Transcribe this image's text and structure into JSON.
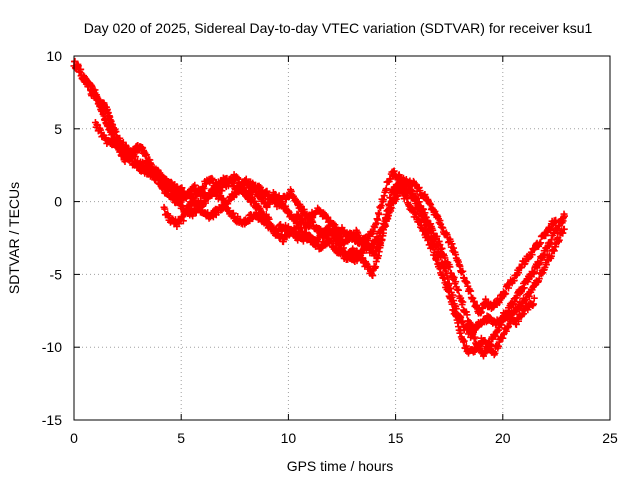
{
  "chart_data": {
    "type": "scatter",
    "title": "Day 020 of 2025, Sidereal Day-to-day VTEC variation (SDTVAR) for receiver ksu1",
    "xlabel": "GPS time / hours",
    "ylabel": "SDTVAR / TECUs",
    "xlim": [
      0,
      25
    ],
    "ylim": [
      -15,
      10
    ],
    "xticks": [
      0,
      5,
      10,
      15,
      20,
      25
    ],
    "yticks": [
      10,
      5,
      0,
      -5,
      -10,
      -15
    ],
    "xtick_labels": [
      "0",
      "5",
      "10",
      "15",
      "20",
      "25"
    ],
    "ytick_labels": [
      "10",
      "5",
      "0",
      "-5",
      "-10",
      "-15"
    ],
    "grid": true,
    "marker": "+",
    "series": [
      {
        "name": "SDTVAR",
        "color": "#ff0000",
        "tracks": [
          {
            "x": [
              0.0,
              0.2,
              0.4,
              0.6,
              0.8,
              1.0,
              1.2,
              1.4,
              1.6,
              1.8,
              2.0,
              2.2,
              2.4,
              2.6,
              2.8,
              3.0,
              3.2,
              3.4,
              3.6,
              3.8,
              4.0,
              4.2,
              4.4,
              4.6,
              4.8,
              5.0,
              5.3,
              5.6,
              5.9,
              6.2,
              6.5,
              6.8,
              7.1,
              7.4,
              7.7,
              8.0,
              8.3,
              8.6,
              8.9,
              9.2,
              9.5,
              9.8,
              10.1,
              10.4,
              10.7,
              11.0,
              11.3,
              11.6,
              11.9,
              12.2,
              12.5,
              12.8,
              13.1,
              13.4,
              13.7,
              14.0,
              14.3,
              14.6,
              14.9,
              15.2,
              15.5,
              15.8,
              16.1,
              16.4,
              16.7,
              17.0,
              17.3,
              17.6,
              17.9,
              18.2,
              18.5,
              18.8,
              19.1,
              19.4,
              19.7,
              20.0,
              20.3,
              20.6,
              20.9,
              21.2,
              21.5,
              21.8,
              22.1,
              22.4,
              22.7,
              22.9
            ],
            "y": [
              9.5,
              9.2,
              8.6,
              8.1,
              7.8,
              7.4,
              6.7,
              5.9,
              5.2,
              4.6,
              3.9,
              3.4,
              2.9,
              3.2,
              3.5,
              3.7,
              3.5,
              3.0,
              2.5,
              2.1,
              1.8,
              1.5,
              1.2,
              0.8,
              0.4,
              0.2,
              0.5,
              1.0,
              0.6,
              0.3,
              0.9,
              1.3,
              1.6,
              1.2,
              0.8,
              1.4,
              1.1,
              0.9,
              0.6,
              0.3,
              -0.2,
              0.2,
              0.6,
              0.0,
              -0.7,
              -1.1,
              -0.6,
              -0.9,
              -1.4,
              -1.8,
              -2.0,
              -2.2,
              -2.5,
              -2.8,
              -2.6,
              -1.9,
              -0.4,
              1.2,
              2.0,
              1.6,
              0.9,
              0.2,
              -0.6,
              -1.5,
              -2.6,
              -3.6,
              -4.8,
              -6.2,
              -7.8,
              -8.6,
              -9.1,
              -8.6,
              -8.1,
              -8.0,
              -8.3,
              -7.9,
              -7.4,
              -6.6,
              -5.9,
              -5.3,
              -4.6,
              -3.9,
              -3.1,
              -2.2,
              -1.4,
              -0.9
            ]
          },
          {
            "x": [
              1.0,
              1.3,
              1.6,
              1.9,
              2.2,
              2.5,
              2.8,
              3.1,
              3.4,
              3.7,
              4.0,
              4.3,
              4.6,
              4.9,
              5.2,
              5.5,
              5.8,
              6.1,
              6.4,
              6.7,
              7.0,
              7.3,
              7.6,
              7.9,
              8.2,
              8.5,
              8.8,
              9.1,
              9.4,
              9.7,
              10.0,
              10.3,
              10.6,
              10.9,
              11.2,
              11.5,
              11.8,
              12.1,
              12.4,
              12.7,
              13.0,
              13.3,
              13.6,
              13.9,
              14.2,
              14.5,
              14.8,
              15.1,
              15.4,
              15.7,
              16.0,
              16.3,
              16.6,
              16.9,
              17.2,
              17.5,
              17.8,
              18.1,
              18.4,
              18.7,
              19.0,
              19.3,
              19.6,
              19.9,
              20.2,
              20.5,
              20.8,
              21.1,
              21.4,
              21.7,
              22.0,
              22.3,
              22.6,
              22.9
            ],
            "y": [
              5.3,
              4.6,
              4.1,
              4.0,
              3.6,
              3.1,
              2.6,
              2.3,
              2.1,
              1.8,
              1.2,
              0.7,
              0.3,
              -0.2,
              -0.6,
              -0.8,
              -0.5,
              -0.8,
              -1.0,
              -0.6,
              -0.3,
              -0.8,
              -1.2,
              -1.5,
              -1.1,
              -0.8,
              -1.4,
              -1.8,
              -2.1,
              -1.7,
              -1.9,
              -2.3,
              -2.6,
              -2.4,
              -2.8,
              -3.1,
              -2.7,
              -3.0,
              -3.5,
              -3.9,
              -3.4,
              -3.7,
              -4.3,
              -5.0,
              -3.8,
              -1.5,
              0.6,
              1.1,
              0.4,
              -0.4,
              -1.2,
              -2.0,
              -2.9,
              -3.9,
              -5.1,
              -6.4,
              -7.9,
              -9.4,
              -10.4,
              -10.1,
              -9.6,
              -9.9,
              -10.3,
              -9.5,
              -8.6,
              -7.6,
              -7.1,
              -6.6,
              -6.0,
              -5.2,
              -4.3,
              -3.5,
              -2.6,
              -1.7
            ]
          },
          {
            "x": [
              4.2,
              4.5,
              4.8,
              5.1,
              5.4,
              5.7,
              6.0,
              6.3,
              6.6,
              6.9,
              7.2,
              7.5,
              7.8,
              8.1,
              8.4,
              8.7,
              9.0,
              9.3,
              9.6,
              9.9,
              10.2,
              10.5,
              10.8,
              11.1,
              11.4,
              11.7,
              12.0,
              12.3,
              12.6,
              12.9,
              13.2,
              13.5,
              13.8,
              14.1,
              14.4,
              14.7,
              15.0,
              15.3,
              15.6,
              15.9,
              16.2,
              16.5,
              16.8,
              17.1,
              17.4,
              17.7,
              18.0,
              18.3,
              18.6,
              18.9,
              19.2,
              19.5,
              19.8,
              20.1,
              20.4,
              20.7,
              21.0,
              21.3,
              21.6,
              21.9,
              22.2,
              22.5
            ],
            "y": [
              -0.6,
              -1.2,
              -1.5,
              -1.1,
              -0.3,
              0.4,
              1.0,
              1.5,
              1.2,
              0.9,
              1.3,
              1.7,
              1.1,
              0.5,
              0.9,
              0.3,
              -0.3,
              0.5,
              0.2,
              -0.6,
              -1.2,
              -1.0,
              -1.7,
              -1.4,
              -2.0,
              -2.4,
              -1.9,
              -2.3,
              -2.8,
              -2.4,
              -2.1,
              -3.0,
              -3.3,
              -2.7,
              -1.8,
              -0.6,
              0.3,
              0.9,
              1.4,
              1.1,
              0.6,
              0.0,
              -0.8,
              -1.6,
              -2.4,
              -3.3,
              -4.4,
              -5.6,
              -6.7,
              -7.6,
              -6.9,
              -7.3,
              -6.8,
              -6.2,
              -5.5,
              -4.9,
              -4.1,
              -3.6,
              -3.0,
              -2.4,
              -1.8,
              -1.1
            ]
          },
          {
            "x": [
              0.8,
              1.0,
              1.2,
              1.4,
              1.6,
              1.8,
              2.0,
              2.3,
              2.6,
              2.9,
              3.2,
              3.5,
              3.8,
              4.1,
              4.4,
              4.7,
              5.0,
              5.3,
              5.6,
              5.9,
              6.2,
              6.5,
              6.8,
              7.1,
              7.4,
              7.7,
              8.0,
              8.3,
              8.6,
              8.9,
              9.2,
              9.5,
              9.8,
              10.1,
              10.4,
              10.7,
              11.0,
              11.3,
              11.6,
              11.9,
              12.2,
              12.5,
              12.8,
              13.1,
              13.4,
              13.7,
              14.0,
              14.3,
              14.6,
              14.9,
              15.2,
              15.5,
              15.8,
              16.1,
              16.4,
              16.7,
              17.0,
              17.3,
              17.6,
              17.9,
              18.2,
              18.5,
              18.8,
              19.1,
              19.4,
              19.7,
              20.0,
              20.3,
              20.6,
              20.9,
              21.2,
              21.5
            ],
            "y": [
              7.5,
              7.2,
              6.8,
              6.6,
              6.0,
              5.2,
              4.5,
              3.9,
              3.4,
              2.8,
              2.5,
              2.2,
              1.9,
              1.5,
              1.3,
              1.0,
              0.8,
              0.4,
              0.1,
              -0.3,
              0.2,
              0.7,
              0.3,
              -0.2,
              0.4,
              0.9,
              0.5,
              0.1,
              -0.5,
              -0.9,
              -1.6,
              -2.2,
              -2.6,
              -2.1,
              -1.6,
              -2.2,
              -2.5,
              -2.9,
              -2.2,
              -1.8,
              -2.6,
              -3.3,
              -3.7,
              -4.0,
              -3.5,
              -3.0,
              -3.6,
              -2.8,
              -1.2,
              0.2,
              1.5,
              1.3,
              0.5,
              -0.2,
              -1.0,
              -1.9,
              -2.8,
              -3.8,
              -4.9,
              -6.1,
              -7.4,
              -8.5,
              -9.8,
              -10.5,
              -9.7,
              -9.0,
              -8.2,
              -7.9,
              -8.4,
              -7.6,
              -7.2,
              -6.8
            ]
          }
        ]
      }
    ]
  }
}
